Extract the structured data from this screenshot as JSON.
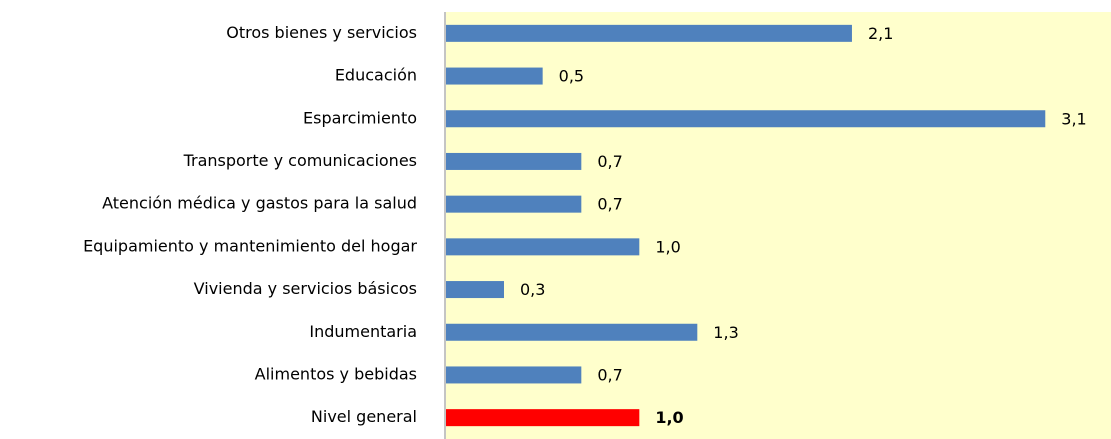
{
  "chart_data": {
    "type": "barh",
    "categories": [
      "Otros bienes y servicios",
      "Educación",
      "Esparcimiento",
      "Transporte y comunicaciones",
      "Atención médica y gastos para la salud",
      "Equipamiento y mantenimiento del hogar",
      "Vivienda y servicios básicos",
      "Indumentaria",
      "Alimentos y bebidas",
      "Nivel general"
    ],
    "values": [
      2.1,
      0.5,
      3.1,
      0.7,
      0.7,
      1.0,
      0.3,
      1.3,
      0.7,
      1.0
    ],
    "value_labels": [
      "2,1",
      "0,5",
      "3,1",
      "0,7",
      "0,7",
      "1,0",
      "0,3",
      "1,3",
      "0,7",
      "1,0"
    ],
    "colors": [
      "#4f81bd",
      "#4f81bd",
      "#4f81bd",
      "#4f81bd",
      "#4f81bd",
      "#4f81bd",
      "#4f81bd",
      "#4f81bd",
      "#4f81bd",
      "#ff0000"
    ],
    "bold_labels": [
      false,
      false,
      false,
      false,
      false,
      false,
      false,
      false,
      false,
      true
    ],
    "plot_background": "#ffffcc",
    "xlim": [
      0,
      3.44
    ]
  }
}
